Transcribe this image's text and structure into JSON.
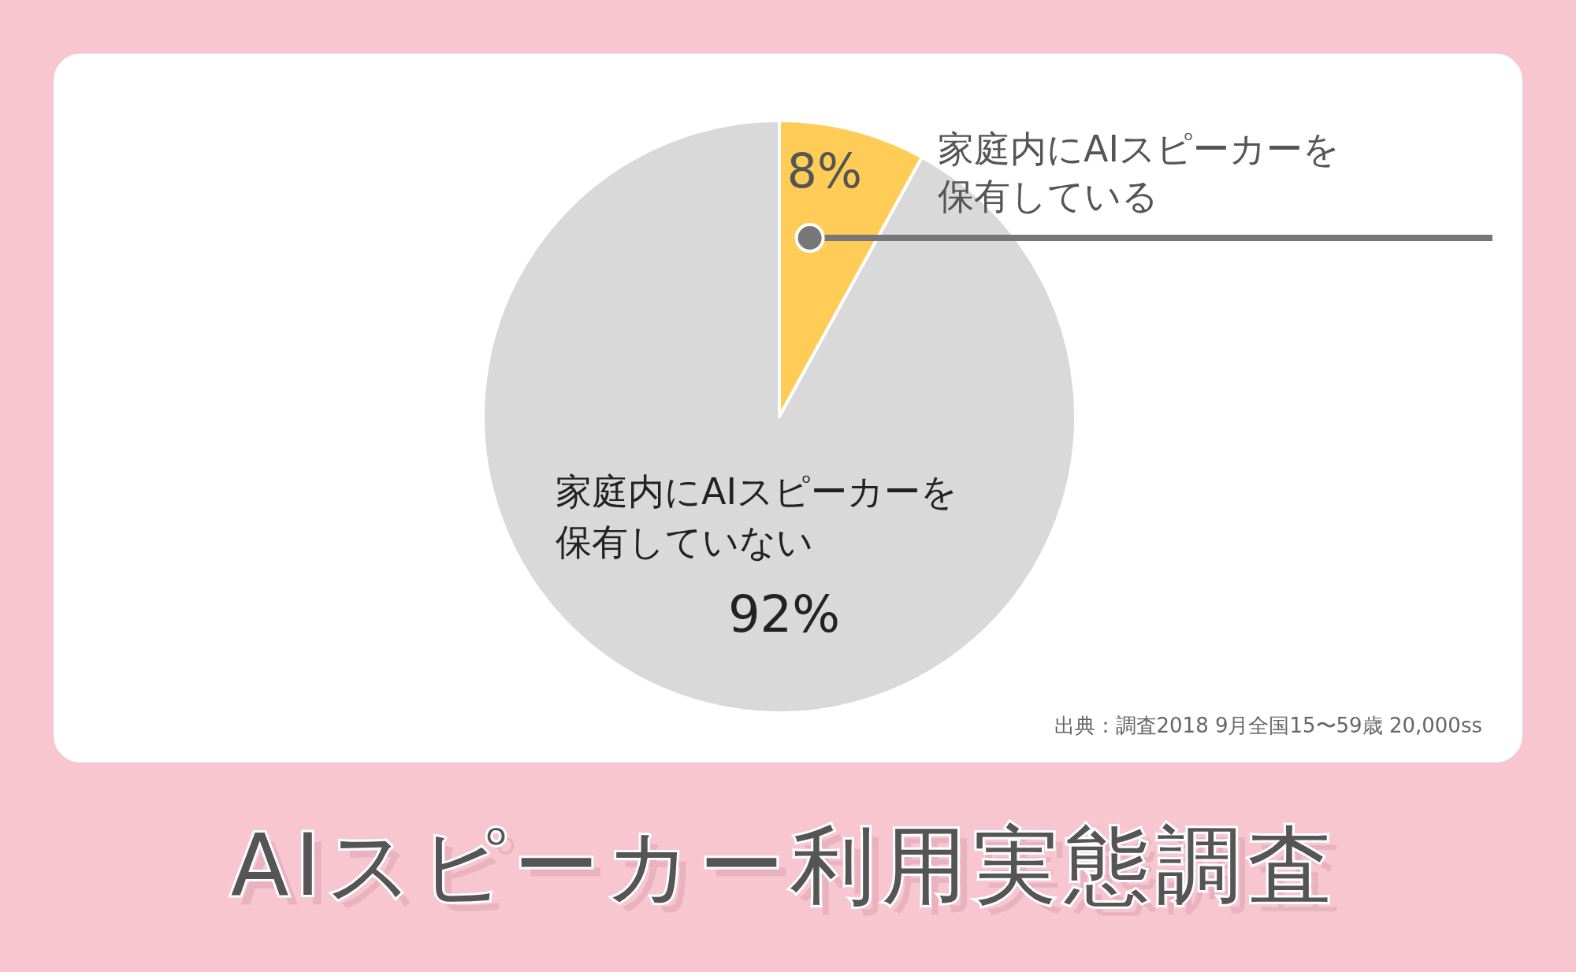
{
  "chart_data": {
    "type": "pie",
    "title": "AIスピーカー利用実態調査",
    "categories": [
      "家庭内にAIスピーカーを保有している",
      "家庭内にAIスピーカーを保有していない"
    ],
    "values": [
      8,
      92
    ],
    "colors": [
      "#ffcd57",
      "#d9d9d9"
    ],
    "value_labels": [
      "8%",
      "92%"
    ],
    "annotations": [
      "出典：調査2018  9月全国15〜59歳 20,000ss"
    ]
  }
}
